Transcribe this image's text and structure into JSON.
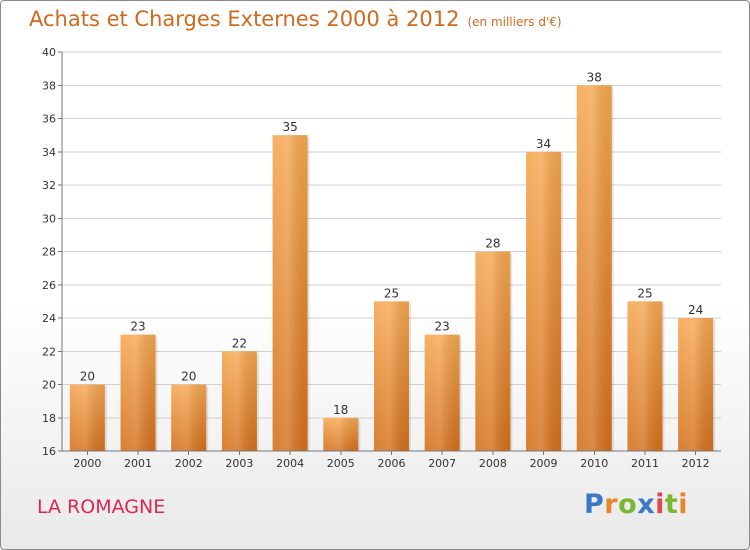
{
  "title": {
    "main": "Achats et Charges Externes 2000 à 2012",
    "unit": "(en milliers d'€)"
  },
  "commune": "LA ROMAGNE",
  "logo": {
    "text": "Proxiti",
    "colors": [
      "#3a78c8",
      "#e8852a",
      "#7cb82f",
      "#3a78c8",
      "#e04848",
      "#7cb82f",
      "#e8852a"
    ]
  },
  "colors": {
    "bar_light": "#f6a852",
    "bar_dark": "#d4701c",
    "title": "#d2691e",
    "commune": "#dc2850"
  },
  "chart_data": {
    "type": "bar",
    "categories": [
      "2000",
      "2001",
      "2002",
      "2003",
      "2004",
      "2005",
      "2006",
      "2007",
      "2008",
      "2009",
      "2010",
      "2011",
      "2012"
    ],
    "values": [
      20,
      23,
      20,
      22,
      35,
      18,
      25,
      23,
      28,
      34,
      38,
      25,
      24
    ],
    "ylim": [
      16,
      40
    ],
    "yticks": [
      16,
      18,
      20,
      22,
      24,
      26,
      28,
      30,
      32,
      34,
      36,
      38,
      40
    ],
    "grid": true,
    "xlabel": "",
    "ylabel": ""
  }
}
